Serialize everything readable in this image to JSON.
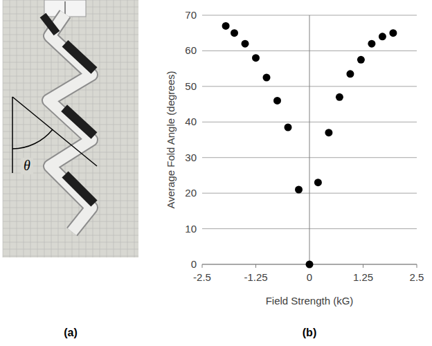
{
  "panel_labels": [
    "(a)",
    "(b)"
  ],
  "photo": {
    "annotation": "θ"
  },
  "chart_data": {
    "type": "scatter",
    "xlabel": "Field Strength (kG)",
    "ylabel": "Average Fold Angle (degrees)",
    "x": [
      -1.95,
      -1.75,
      -1.5,
      -1.25,
      -1.0,
      -0.75,
      -0.5,
      -0.25,
      0,
      0.2,
      0.45,
      0.7,
      0.95,
      1.2,
      1.45,
      1.7,
      1.95
    ],
    "values": [
      67,
      65,
      62,
      58,
      52.5,
      46,
      38.5,
      21,
      0,
      23,
      37,
      47,
      53.5,
      57.5,
      62,
      64,
      65
    ],
    "color": "#000000",
    "marker": "circle",
    "xlim": [
      -2.5,
      2.5
    ],
    "xticks": [
      -2.5,
      -1.25,
      0,
      1.25,
      2.5
    ],
    "ylim": [
      0,
      70
    ],
    "yticks": [
      0,
      10,
      20,
      30,
      40,
      50,
      60,
      70
    ],
    "grid": true
  }
}
